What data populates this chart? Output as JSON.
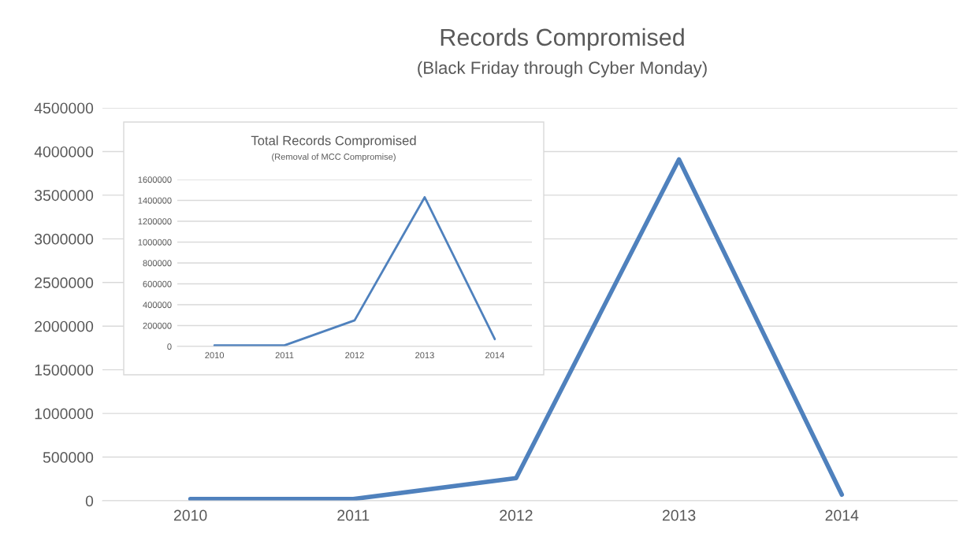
{
  "chart_data": [
    {
      "type": "line",
      "title": "Records Compromised",
      "subtitle": "(Black Friday through Cyber Monday)",
      "categories": [
        "2010",
        "2011",
        "2012",
        "2013",
        "2014"
      ],
      "series": [
        {
          "color": "#4f81bd",
          "values": [
            20000,
            20000,
            260000,
            3910000,
            70000
          ]
        }
      ],
      "ylim": [
        0,
        4500000
      ],
      "yticks": [
        0,
        500000,
        1000000,
        1500000,
        2000000,
        2500000,
        3000000,
        3500000,
        4000000,
        4500000
      ],
      "grid": "y",
      "marker": "none",
      "line_style": "solid"
    },
    {
      "type": "line",
      "title": "Total Records Compromised",
      "subtitle": "(Removal of MCC Compromise)",
      "categories": [
        "2010",
        "2011",
        "2012",
        "2013",
        "2014"
      ],
      "series": [
        {
          "color": "#4f81bd",
          "values": [
            10000,
            10000,
            250000,
            1430000,
            70000
          ]
        }
      ],
      "ylim": [
        0,
        1600000
      ],
      "yticks": [
        0,
        200000,
        400000,
        600000,
        800000,
        1000000,
        1200000,
        1400000,
        1600000
      ],
      "grid": "y",
      "marker": "none",
      "line_style": "solid"
    }
  ]
}
